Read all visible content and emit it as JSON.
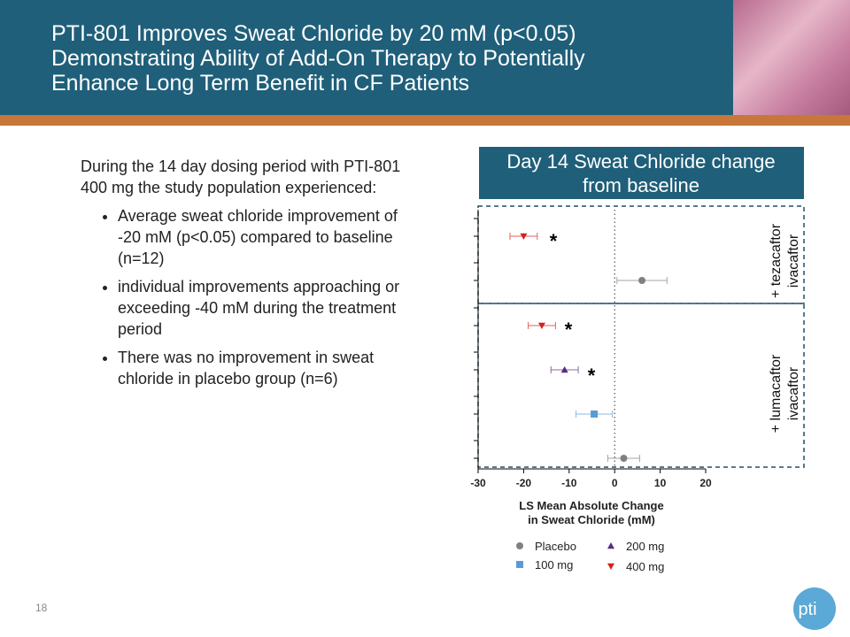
{
  "header": {
    "title_lines": [
      "PTI-801 Improves Sweat Chloride by 20 mM (p<0.05)",
      "Demonstrating Ability of Add-On Therapy to Potentially",
      "Enhance Long Term Benefit in CF Patients"
    ]
  },
  "body": {
    "intro": "During the 14 day dosing period with PTI-801 400 mg the study population experienced:",
    "bullets": [
      "Average sweat chloride improvement of -20 mM (p<0.05) compared to baseline (n=12)",
      "individual improvements approaching or exceeding -40 mM during the treatment period",
      "There was no improvement in sweat chloride in placebo group (n=6)"
    ]
  },
  "page_number": "18",
  "logo": "pti",
  "chart_data": {
    "type": "forest",
    "title_lines": [
      "Day 14 Sweat Chloride change",
      "from baseline"
    ],
    "xlabel_lines": [
      "LS Mean Absolute Change",
      "in Sweat Chloride (mM)"
    ],
    "xlim": [
      -30,
      20
    ],
    "xticks": [
      -30,
      -20,
      -10,
      0,
      10,
      20
    ],
    "categories": [
      null,
      null,
      null,
      null,
      null,
      null
    ],
    "groups": [
      [
        "+ tezacaftor",
        "ivacaftor"
      ],
      [
        "+ lumacaftor",
        "ivacaftor"
      ]
    ],
    "series": [
      {
        "name": "Placebo",
        "color": "#808080",
        "marker": "circle",
        "values": [
          null,
          6,
          null,
          null,
          null,
          2
        ],
        "errors": [
          null,
          5.5,
          null,
          null,
          null,
          3.5
        ]
      },
      {
        "name": "100 mg",
        "color": "#5b9bd5",
        "marker": "square",
        "values": [
          null,
          null,
          null,
          null,
          -4.5,
          null
        ],
        "errors": [
          null,
          null,
          null,
          null,
          4,
          null
        ]
      },
      {
        "name": "200 mg",
        "color": "#5b2a86",
        "marker": "triangle-up",
        "values": [
          null,
          null,
          null,
          -11,
          null,
          null
        ],
        "errors": [
          null,
          null,
          null,
          3,
          null,
          null
        ]
      },
      {
        "name": "400 mg",
        "color": "#d62020",
        "marker": "triangle-down",
        "values": [
          -20,
          null,
          -16,
          null,
          null,
          null
        ],
        "errors": [
          3,
          null,
          3,
          null,
          null,
          null
        ]
      }
    ],
    "annotations": [
      "*",
      "*",
      "*"
    ]
  }
}
